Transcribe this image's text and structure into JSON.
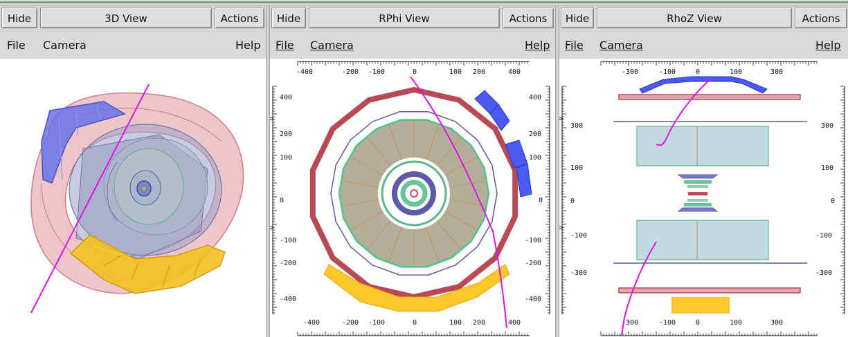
{
  "panels": [
    {
      "hide": "Hide",
      "title": "3D View",
      "actions": "Actions",
      "menu": {
        "file": "File",
        "camera": "Camera",
        "help": "Help"
      }
    },
    {
      "hide": "Hide",
      "title": "RPhi View",
      "actions": "Actions",
      "menu": {
        "file": "File",
        "camera": "Camera",
        "help": "Help"
      },
      "axis_top": [
        "-400",
        "-200",
        "-100",
        "0",
        "100",
        "200",
        "400"
      ],
      "axis_left": [
        "400",
        "200",
        "100",
        "0",
        "-100",
        "-200",
        "-400"
      ],
      "axis_right": [
        "400",
        "200",
        "100",
        "0",
        "-100",
        "-200",
        "-400"
      ],
      "axis_bottom": [
        "-400",
        "-200",
        "-100",
        "0",
        "100",
        "200",
        "400"
      ]
    },
    {
      "hide": "Hide",
      "title": "RhoZ View",
      "actions": "Actions",
      "menu": {
        "file": "File",
        "camera": "Camera",
        "help": "Help"
      },
      "axis_top": [
        "-300",
        "-100",
        "0",
        "100",
        "300"
      ],
      "axis_left": [
        "300",
        "100",
        "0",
        "-100",
        "-300"
      ],
      "axis_right": [
        "300",
        "100",
        "0",
        "-100",
        "-300"
      ],
      "axis_bottom": [
        "-300",
        "-100",
        "0",
        "100",
        "300"
      ]
    }
  ],
  "colors": {
    "muon": "#b94a55",
    "muon_fill": "#e3a7ae",
    "tracker": "#5a5aa8",
    "ecal": "#5ab48a",
    "hcal_fill": "#a9a890",
    "barrel_fill": "#c2dbe0",
    "blue_hits": "#4a5af0",
    "yellow_hits": "#ffc72a",
    "track": "#e011e8"
  }
}
